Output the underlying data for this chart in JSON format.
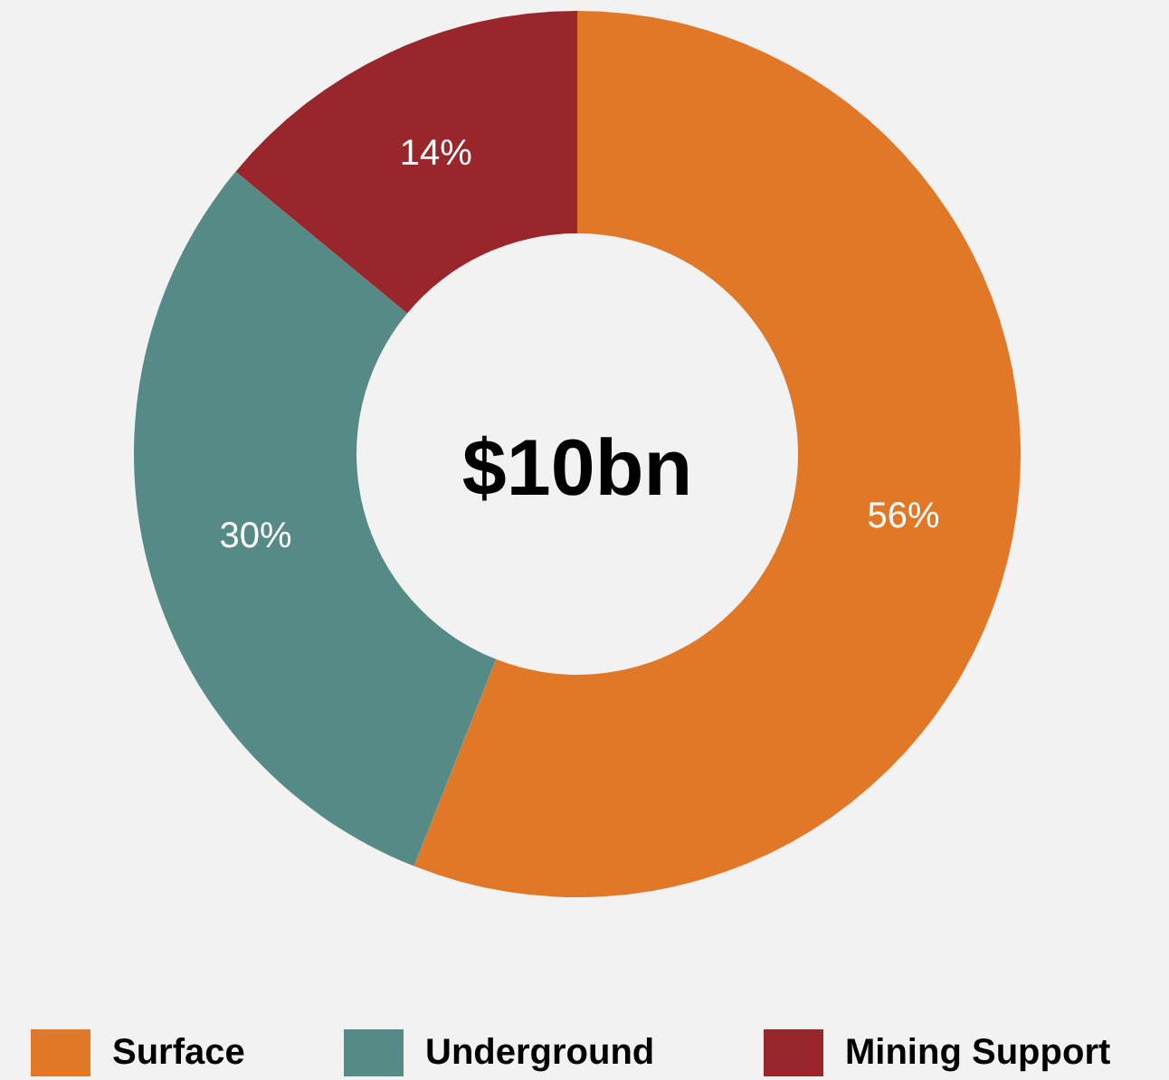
{
  "chart_data": {
    "type": "donut",
    "categories": [
      "Surface",
      "Underground",
      "Mining Support"
    ],
    "values": [
      56,
      30,
      14
    ],
    "colors": [
      "#e07828",
      "#558a86",
      "#98262b"
    ],
    "value_labels": [
      "56%",
      "30%",
      "14%"
    ],
    "annotations": [
      "$10bn"
    ],
    "legend": "bottom"
  }
}
